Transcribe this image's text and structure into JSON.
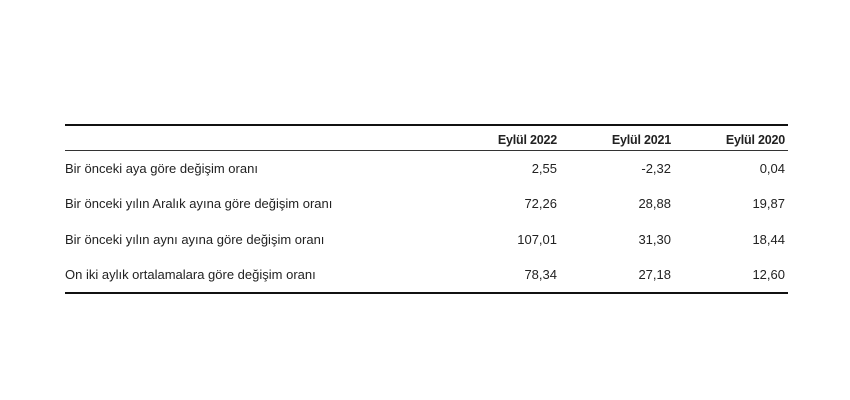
{
  "table": {
    "headers": [
      "",
      "Eylül 2022",
      "Eylül 2021",
      "Eylül 2020"
    ],
    "rows": [
      {
        "label": "Bir önceki aya göre değişim oranı",
        "values": [
          "2,55",
          "-2,32",
          "0,04"
        ]
      },
      {
        "label": "Bir önceki yılın Aralık ayına göre değişim oranı",
        "values": [
          "72,26",
          "28,88",
          "19,87"
        ]
      },
      {
        "label": "Bir önceki yılın aynı ayına göre değişim oranı",
        "values": [
          "107,01",
          "31,30",
          "18,44"
        ]
      },
      {
        "label": "On iki aylık ortalamalara göre değişim oranı",
        "values": [
          "78,34",
          "27,18",
          "12,60"
        ]
      }
    ]
  }
}
